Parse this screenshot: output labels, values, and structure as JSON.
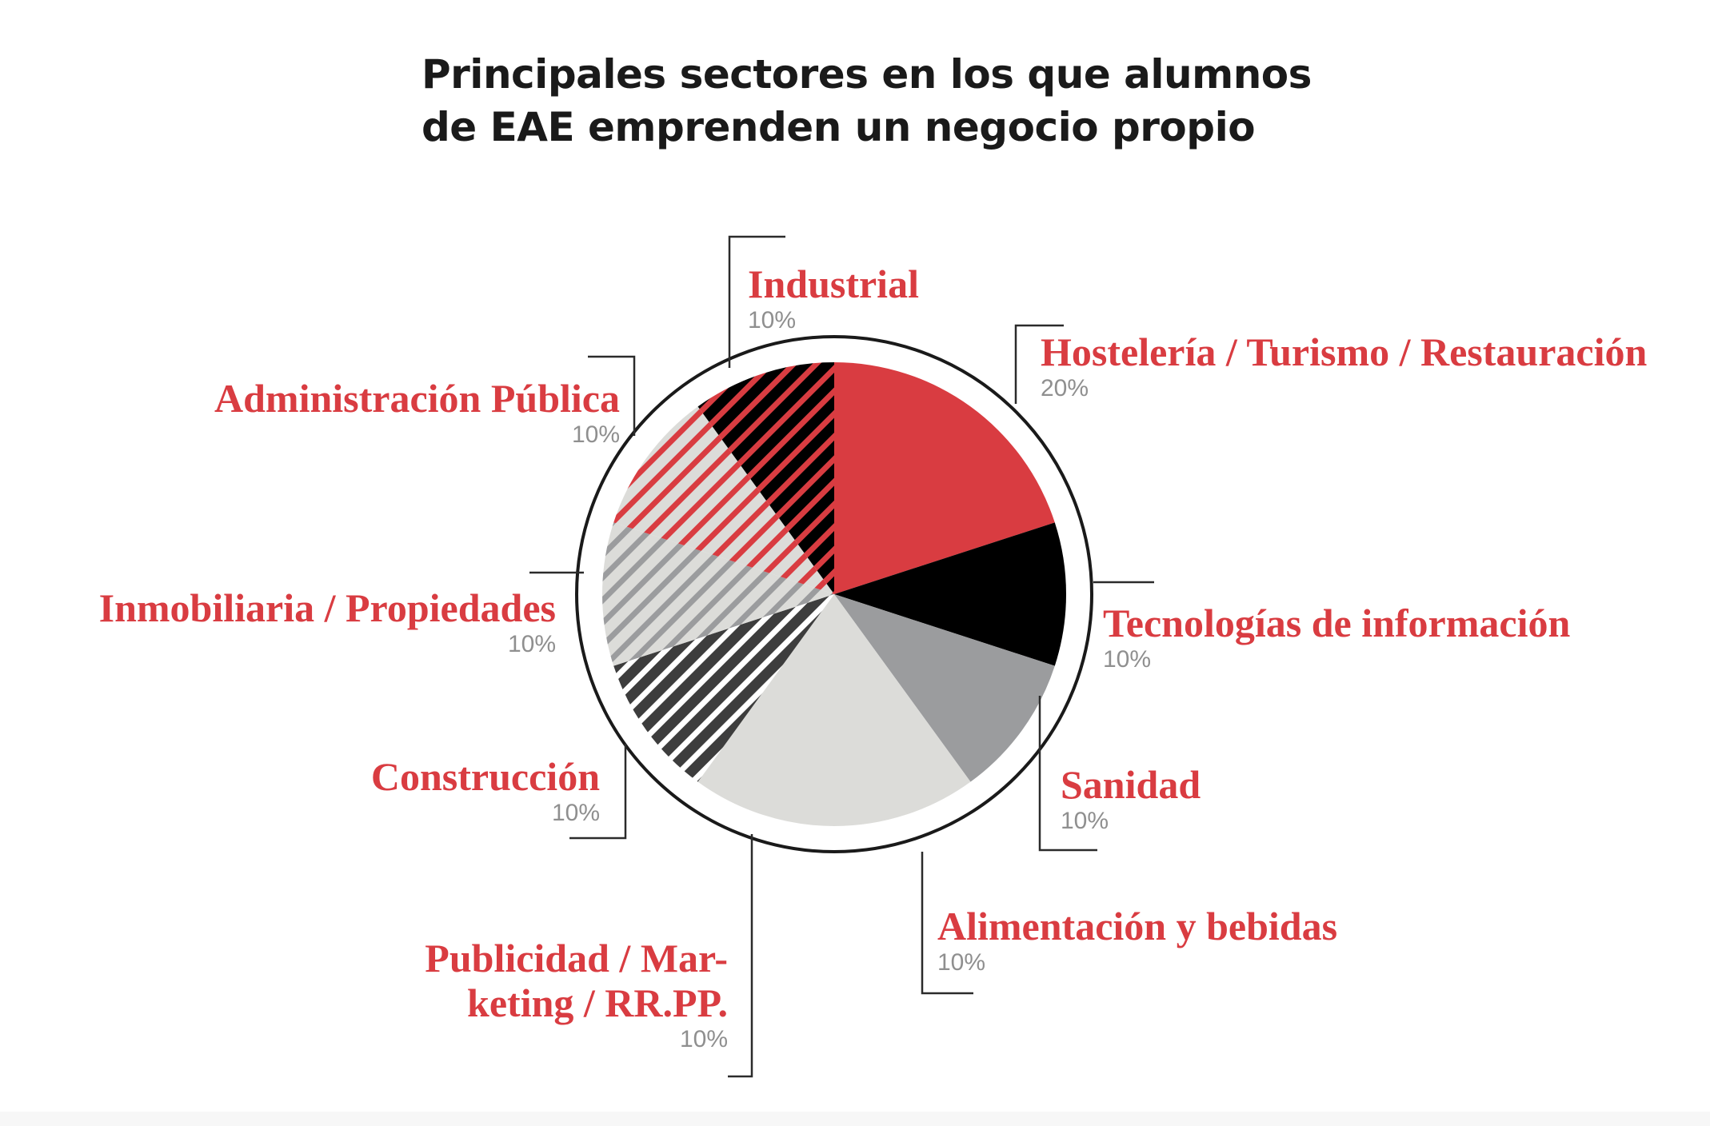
{
  "colors": {
    "accent": "#d93c41",
    "black": "#000000",
    "dark_gray": "#3d3d3d",
    "mid_gray": "#9b9c9e",
    "light_gray": "#dcdcd9",
    "pct_gray": "#8f8f8f"
  },
  "chart_data": {
    "type": "pie",
    "title": "Principales sectores en los que alumnos de EAE emprenden un negocio propio",
    "title_lines": [
      "Principales sectores en los que alumnos",
      "de EAE emprenden un negocio propio"
    ],
    "unit": "%",
    "slices": [
      {
        "label": "Hostelería / Turismo / Restauración",
        "value": 20,
        "value_label": "20%",
        "fill": "solid",
        "color": "#d93c41"
      },
      {
        "label": "Tecnologías de información",
        "value": 10,
        "value_label": "10%",
        "fill": "solid",
        "color": "#000000"
      },
      {
        "label": "Sanidad",
        "value": 10,
        "value_label": "10%",
        "fill": "solid",
        "color": "#9b9c9e"
      },
      {
        "label": "Alimentación y bebidas",
        "value": 10,
        "value_label": "10%",
        "fill": "solid",
        "color": "#dcdcd9"
      },
      {
        "label": "Publicidad / Marketing / RR.PP.",
        "label_lines": [
          "Publicidad / Mar-",
          "keting / RR.PP."
        ],
        "value": 10,
        "value_label": "10%",
        "fill": "solid",
        "color": "#dcdcd9"
      },
      {
        "label": "Construcción",
        "value": 10,
        "value_label": "10%",
        "fill": "hatched",
        "color": "#3d3d3d",
        "stripe_color": "#ffffff"
      },
      {
        "label": "Inmobiliaria / Propiedades",
        "value": 10,
        "value_label": "10%",
        "fill": "hatched",
        "color": "#dcdcd9",
        "stripe_color": "#9b9c9e"
      },
      {
        "label": "Administración Pública",
        "value": 10,
        "value_label": "10%",
        "fill": "hatched",
        "color": "#dcdcd9",
        "stripe_color": "#d93c41"
      },
      {
        "label": "Industrial",
        "value": 10,
        "value_label": "10%",
        "fill": "hatched",
        "color": "#000000",
        "stripe_color": "#d93c41"
      }
    ]
  }
}
